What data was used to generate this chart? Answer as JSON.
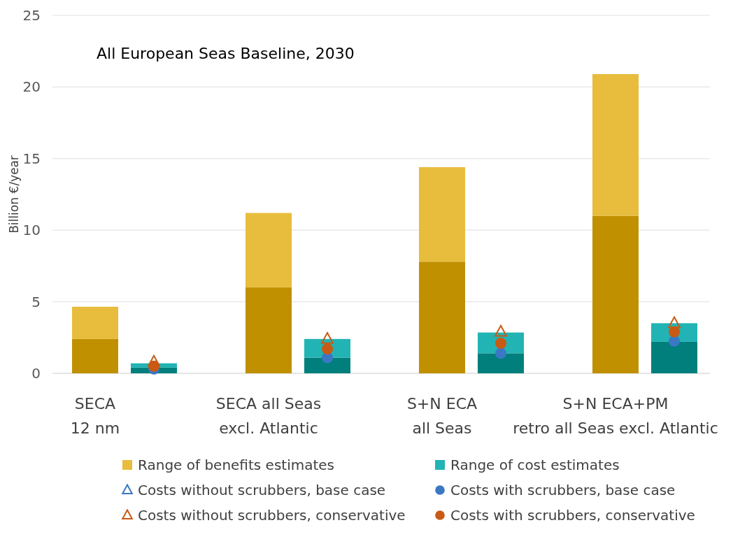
{
  "chart_data": {
    "type": "bar",
    "title": "All European Seas Baseline, 2030",
    "ylabel": "Billion €/year",
    "categories": [
      "SECA\n12 nm",
      null,
      "SECA all Seas\nexcl. Atlantic",
      null,
      "S+N ECA\nall Seas",
      null,
      "S+N ECA+PM\nretro all Seas excl. Atlantic",
      null
    ],
    "stacked": true,
    "ylim": [
      0,
      25
    ],
    "yticks": [
      0,
      5,
      10,
      15,
      20,
      25
    ],
    "grid": "y",
    "legend": "bottom",
    "series": [
      {
        "color": "#c09000",
        "values": [
          2.4,
          null,
          6.0,
          null,
          7.8,
          null,
          11.0,
          null
        ]
      },
      {
        "name": "Range of benefits estimates",
        "color": "#e8bc3c",
        "values": [
          2.25,
          null,
          5.2,
          null,
          6.6,
          null,
          9.9,
          null
        ]
      },
      {
        "color": "#007f7c",
        "values": [
          null,
          0.4,
          null,
          1.1,
          null,
          1.4,
          null,
          2.2
        ]
      },
      {
        "name": "Range of cost estimates",
        "color": "#22b4b4",
        "values": [
          null,
          0.3,
          null,
          1.3,
          null,
          1.45,
          null,
          1.3
        ]
      },
      {
        "type": "scatter",
        "name": "Costs without scrubbers, base case",
        "color": "#3a78c4",
        "marker": "triangle",
        "values": [
          null,
          null,
          null,
          null,
          null,
          null,
          null,
          null
        ]
      },
      {
        "type": "scatter",
        "name": "Costs with scrubbers, base case",
        "color": "#3a78c4",
        "marker": "circle",
        "values": [
          null,
          0.3,
          null,
          1.1,
          null,
          1.4,
          null,
          2.25
        ]
      },
      {
        "type": "scatter",
        "name": "Costs without scrubbers, conservative",
        "color": "#c85a14",
        "marker": "triangle",
        "values": [
          null,
          0.8,
          null,
          2.4,
          null,
          2.9,
          null,
          3.5
        ]
      },
      {
        "type": "scatter",
        "name": "Costs with scrubbers, conservative",
        "color": "#c85a14",
        "marker": "circle",
        "values": [
          null,
          0.5,
          null,
          1.7,
          null,
          2.1,
          null,
          2.9
        ]
      }
    ]
  }
}
